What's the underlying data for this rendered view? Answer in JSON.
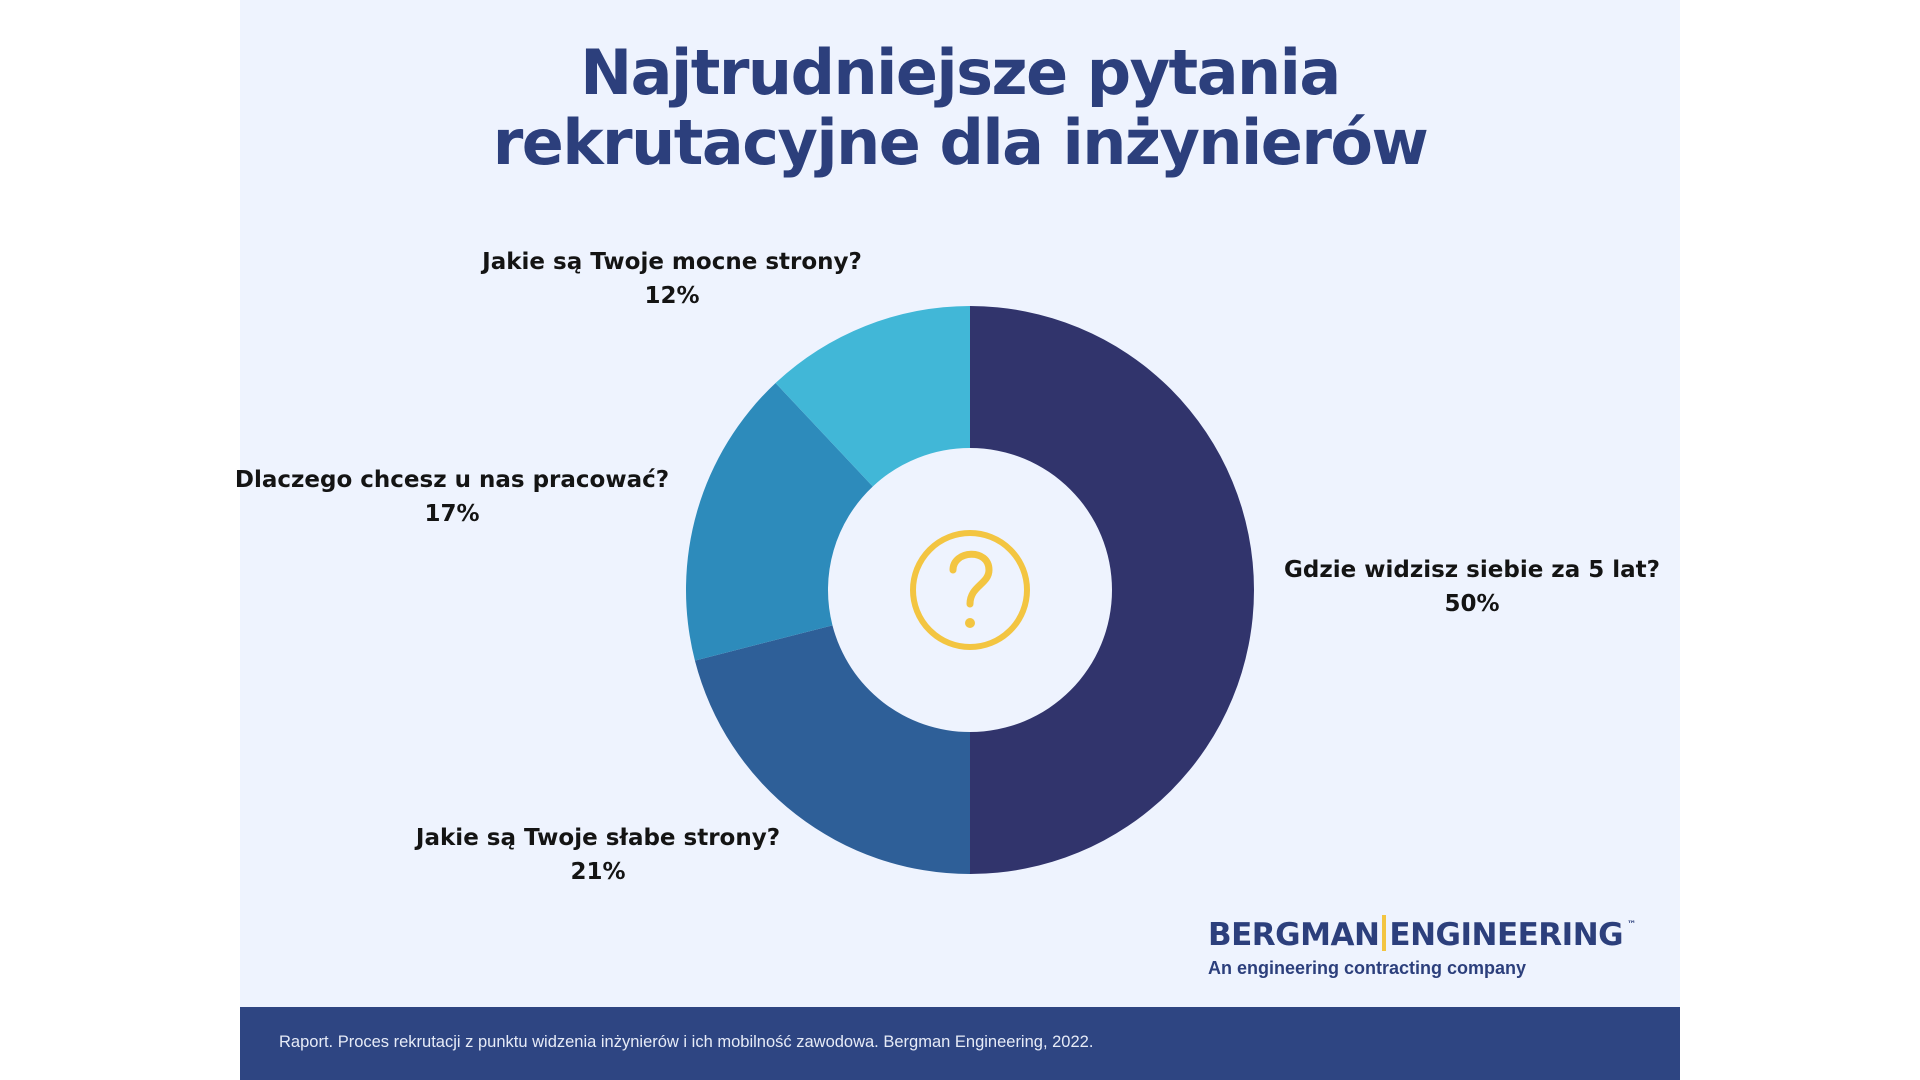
{
  "chart_data": {
    "type": "pie",
    "title": "Najtrudniejsze pytania rekrutacyjne dla inżynierów",
    "title_lines": [
      "Najtrudniejsze pytania",
      "rekrutacyjne dla inżynierów"
    ],
    "categories": [
      "Gdzie widzisz siebie za 5 lat?",
      "Jakie są Twoje słabe strony?",
      "Dlaczego chcesz u nas pracować?",
      "Jakie są Twoje mocne strony?"
    ],
    "values": [
      50,
      21,
      17,
      12
    ],
    "value_labels": [
      "50%",
      "21%",
      "17%",
      "12%"
    ],
    "colors": [
      "#31346c",
      "#2e5f98",
      "#2d8bbb",
      "#41b7d7"
    ],
    "donut": true,
    "start": "12 o'clock, clockwise",
    "center_icon": "question-mark-circle-icon",
    "center_icon_color": "#f3c541",
    "legend": "none, labels placed outside slices"
  },
  "logo": {
    "name_left": "BERGMAN",
    "name_right": "ENGINEERING",
    "trademark": "™",
    "tagline": "An engineering contracting company",
    "accent_color": "#f3c541",
    "brand_color": "#2c3f7c"
  },
  "footer": {
    "text": "Raport. Proces rekrutacji z punktu widzenia inżynierów i ich mobilność zawodowa. Bergman Engineering, 2022."
  }
}
